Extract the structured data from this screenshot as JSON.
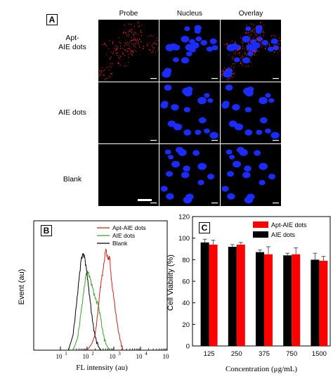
{
  "panelA": {
    "letter": "A",
    "columns": [
      "Probe",
      "Nucleus",
      "Overlay"
    ],
    "rows": [
      {
        "label_line1": "Apt-",
        "label_line2": "AIE dots"
      },
      {
        "label_line1": "AIE dots",
        "label_line2": ""
      },
      {
        "label_line1": "Blank",
        "label_line2": ""
      }
    ],
    "colors": {
      "probe": "#c8201e",
      "nucleus": "#1a2cff"
    }
  },
  "chart_data": [
    {
      "type": "line",
      "panel": "B",
      "xlabel": "FL intensity (au)",
      "ylabel": "Event (au)",
      "xscale": "log",
      "xlim": [
        1,
        100000
      ],
      "x_ticks": [
        "10",
        "10",
        "10",
        "10",
        "10"
      ],
      "x_tick_exponents": [
        "1",
        "2",
        "3",
        "4",
        "5"
      ],
      "legend_position": "top-right",
      "series": [
        {
          "name": "Apt-AIE dots",
          "color": "#d02020",
          "x": [
            100,
            150,
            200,
            250,
            300,
            350,
            400,
            500,
            600,
            700,
            800,
            1000,
            1300,
            1700,
            2200
          ],
          "y": [
            0.0,
            0.05,
            0.12,
            0.28,
            0.45,
            0.55,
            0.62,
            0.78,
            0.7,
            0.72,
            0.55,
            0.4,
            0.22,
            0.08,
            0.0
          ]
        },
        {
          "name": "AIE dots",
          "color": "#3aa12a",
          "x": [
            30,
            45,
            60,
            75,
            90,
            110,
            130,
            160,
            200,
            260,
            320,
            400,
            500,
            700
          ],
          "y": [
            0.0,
            0.1,
            0.3,
            0.45,
            0.58,
            0.6,
            0.55,
            0.48,
            0.4,
            0.35,
            0.25,
            0.12,
            0.05,
            0.0
          ]
        },
        {
          "name": "Blank",
          "color": "#000000",
          "x": [
            20,
            30,
            40,
            50,
            60,
            70,
            80,
            95,
            110,
            130,
            160,
            200,
            260,
            330
          ],
          "y": [
            0.0,
            0.12,
            0.35,
            0.55,
            0.7,
            0.74,
            0.72,
            0.62,
            0.5,
            0.38,
            0.22,
            0.1,
            0.03,
            0.0
          ]
        }
      ]
    },
    {
      "type": "bar",
      "panel": "C",
      "xlabel": "Concentration (μg/mL)",
      "ylabel": "Cell Viability (%)",
      "ylim": [
        0,
        120
      ],
      "y_ticks": [
        0,
        20,
        40,
        60,
        80,
        100,
        120
      ],
      "categories": [
        "125",
        "250",
        "375",
        "750",
        "1500"
      ],
      "legend_position": "top-right",
      "series": [
        {
          "name": "AIE dots",
          "color": "#000000",
          "values": [
            96,
            92,
            87,
            84,
            80
          ],
          "errors": [
            3,
            2,
            2,
            2,
            6
          ]
        },
        {
          "name": "Apt-AIE dots",
          "color": "#ff0000",
          "values": [
            94,
            94,
            85,
            85,
            79
          ],
          "errors": [
            4,
            2,
            7,
            6,
            4
          ]
        }
      ]
    }
  ],
  "panelB": {
    "letter": "B"
  },
  "panelC": {
    "letter": "C"
  }
}
